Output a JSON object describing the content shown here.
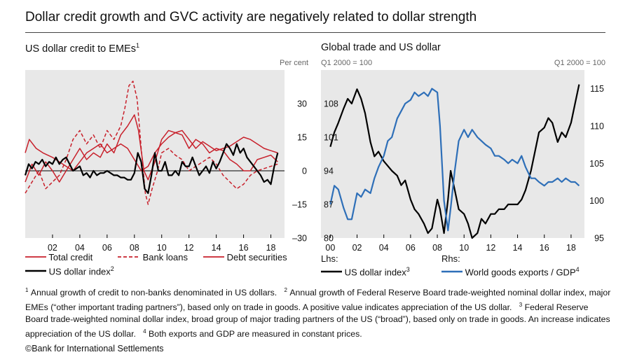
{
  "title": "Dollar credit growth and GVC activity are negatively related to dollar strength",
  "copyright": "©Bank for International Settlements",
  "footnotes": [
    {
      "mark": "1",
      "text": "Annual growth of credit to non-banks denominated in US dollars."
    },
    {
      "mark": "2",
      "text": "Annual growth of Federal Reserve Board trade-weighted nominal dollar index, major EMEs (“other important trading partners”), based only on trade in goods. A positive value indicates appreciation of the US dollar."
    },
    {
      "mark": "3",
      "text": "Federal Reserve Board trade-weighted nominal dollar index, broad group of major trading partners of the US (“broad”), based only on trade in goods. An increase indicates appreciation of the US dollar."
    },
    {
      "mark": "4",
      "text": "Both exports and GDP are measured in constant prices."
    }
  ],
  "chart_data": [
    {
      "type": "line",
      "title": "US dollar credit to EMEs",
      "title_note": "1",
      "unit_right": "Per cent",
      "x_ticks": [
        "02",
        "04",
        "06",
        "08",
        "10",
        "12",
        "14",
        "16",
        "18"
      ],
      "xlim": [
        2000,
        2019
      ],
      "ylim": [
        -30,
        45
      ],
      "y_ticks": [
        30,
        15,
        0,
        -15,
        -30
      ],
      "y_tick_labels": [
        "30",
        "15",
        "0",
        "–15",
        "–30"
      ],
      "grid": false,
      "zero_line": true,
      "background": "#e8e8e8",
      "legend_position": "bottom",
      "legend_layout": [
        [
          "Total credit",
          "Bank loans",
          "Debt securities"
        ],
        [
          "US dollar index"
        ]
      ],
      "series": [
        {
          "name": "Total credit",
          "color": "#c8202b",
          "style": "solid",
          "width": 1.5,
          "x": [
            2000,
            2000.5,
            2001,
            2001.5,
            2002,
            2002.5,
            2003,
            2003.5,
            2004,
            2004.5,
            2005,
            2005.5,
            2006,
            2006.5,
            2007,
            2007.5,
            2008,
            2008.3,
            2008.7,
            2009,
            2009.5,
            2010,
            2010.5,
            2011,
            2011.5,
            2012,
            2012.5,
            2013,
            2013.5,
            2014,
            2014.5,
            2015,
            2015.5,
            2016,
            2016.5,
            2017,
            2017.5,
            2018,
            2018.5
          ],
          "y": [
            -5,
            3,
            -2,
            4,
            0,
            -5,
            0,
            5,
            10,
            5,
            8,
            6,
            12,
            8,
            16,
            20,
            25,
            18,
            0,
            -4,
            4,
            14,
            18,
            17,
            16,
            10,
            14,
            12,
            8,
            10,
            9,
            5,
            3,
            0,
            0,
            5,
            6,
            7,
            4
          ]
        },
        {
          "name": "Bank loans",
          "color": "#c8202b",
          "style": "dashed",
          "width": 1.5,
          "x": [
            2000,
            2000.5,
            2001,
            2001.5,
            2002,
            2002.5,
            2003,
            2003.5,
            2004,
            2004.5,
            2005,
            2005.5,
            2006,
            2006.5,
            2007,
            2007.3,
            2007.6,
            2007.9,
            2008.2,
            2008.5,
            2008.8,
            2009,
            2009.3,
            2009.7,
            2010,
            2010.5,
            2011,
            2011.5,
            2012,
            2012.5,
            2013,
            2013.5,
            2014,
            2014.5,
            2015,
            2015.5,
            2016,
            2016.5,
            2017,
            2017.5,
            2018,
            2018.5
          ],
          "y": [
            -10,
            -5,
            0,
            -8,
            -5,
            -2,
            5,
            14,
            18,
            12,
            16,
            10,
            18,
            14,
            20,
            28,
            38,
            40,
            32,
            10,
            -10,
            -15,
            -8,
            0,
            8,
            10,
            7,
            5,
            0,
            2,
            4,
            6,
            3,
            -2,
            -5,
            -8,
            -6,
            -2,
            0,
            1,
            2,
            3
          ]
        },
        {
          "name": "Debt securities",
          "color": "#c8202b",
          "style": "solid",
          "width": 1.5,
          "x": [
            2000,
            2000.3,
            2000.8,
            2001.3,
            2002,
            2002.5,
            2003,
            2003.5,
            2004,
            2004.5,
            2005,
            2005.5,
            2006,
            2006.5,
            2007,
            2007.5,
            2008,
            2008.5,
            2009,
            2009.5,
            2010,
            2010.5,
            2011,
            2011.5,
            2012,
            2012.5,
            2013,
            2013.5,
            2014,
            2014.5,
            2015,
            2015.5,
            2016,
            2016.5,
            2017,
            2017.5,
            2018,
            2018.5
          ],
          "y": [
            8,
            14,
            10,
            8,
            6,
            4,
            2,
            0,
            4,
            8,
            10,
            12,
            8,
            10,
            12,
            10,
            5,
            0,
            2,
            8,
            12,
            15,
            17,
            18,
            14,
            10,
            13,
            11,
            9,
            10,
            11,
            13,
            15,
            14,
            12,
            10,
            9,
            8
          ]
        },
        {
          "name": "US dollar index",
          "note": "2",
          "color": "#000000",
          "style": "solid",
          "width": 2.2,
          "x": [
            2000,
            2000.25,
            2000.5,
            2000.75,
            2001,
            2001.25,
            2001.5,
            2001.75,
            2002,
            2002.25,
            2002.5,
            2002.75,
            2003,
            2003.25,
            2003.5,
            2003.75,
            2004,
            2004.25,
            2004.5,
            2004.75,
            2005,
            2005.25,
            2005.5,
            2005.75,
            2006,
            2006.25,
            2006.5,
            2006.75,
            2007,
            2007.25,
            2007.5,
            2007.75,
            2008,
            2008.25,
            2008.5,
            2008.75,
            2009,
            2009.25,
            2009.5,
            2009.75,
            2010,
            2010.25,
            2010.5,
            2010.75,
            2011,
            2011.25,
            2011.5,
            2011.75,
            2012,
            2012.25,
            2012.5,
            2012.75,
            2013,
            2013.25,
            2013.5,
            2013.75,
            2014,
            2014.25,
            2014.5,
            2014.75,
            2015,
            2015.25,
            2015.5,
            2015.75,
            2016,
            2016.25,
            2016.5,
            2016.75,
            2017,
            2017.25,
            2017.5,
            2017.75,
            2018,
            2018.25,
            2018.5
          ],
          "y": [
            -2,
            3,
            1,
            4,
            3,
            5,
            2,
            4,
            3,
            6,
            3,
            5,
            6,
            3,
            0,
            1,
            2,
            -2,
            -1,
            -3,
            0,
            -2,
            -1,
            -1,
            0,
            -1,
            -2,
            -2,
            -3,
            -3,
            -4,
            -4,
            -1,
            8,
            4,
            -8,
            -10,
            -2,
            8,
            0,
            0,
            4,
            -2,
            -2,
            0,
            -2,
            4,
            2,
            2,
            6,
            2,
            -2,
            0,
            2,
            -1,
            4,
            1,
            4,
            8,
            12,
            10,
            7,
            12,
            8,
            10,
            6,
            4,
            2,
            0,
            -2,
            -5,
            -4,
            -6,
            2,
            8
          ]
        }
      ]
    },
    {
      "type": "line",
      "title": "Global trade and US dollar",
      "unit_left": "Q1 2000 = 100",
      "unit_right": "Q1 2000 = 100",
      "x_ticks": [
        "00",
        "02",
        "04",
        "06",
        "08",
        "10",
        "12",
        "14",
        "16",
        "18"
      ],
      "xlim": [
        1999.3,
        2019
      ],
      "ylim_left": [
        80,
        115
      ],
      "y_ticks_left": [
        108,
        101,
        94,
        87,
        80
      ],
      "ylim_right": [
        95,
        117.5
      ],
      "y_ticks_right": [
        115,
        110,
        105,
        100,
        95
      ],
      "grid": false,
      "background": "#e8e8e8",
      "legend_position": "bottom",
      "legend_headers": [
        "Lhs:",
        "Rhs:"
      ],
      "series": [
        {
          "name": "US dollar index",
          "note": "3",
          "axis": "left",
          "color": "#000000",
          "width": 2.2,
          "x": [
            2000,
            2000.3,
            2000.6,
            2001,
            2001.3,
            2001.6,
            2002,
            2002.3,
            2002.6,
            2003,
            2003.3,
            2003.6,
            2004,
            2004.3,
            2004.6,
            2005,
            2005.3,
            2005.6,
            2006,
            2006.3,
            2006.6,
            2007,
            2007.3,
            2007.6,
            2008,
            2008.2,
            2008.5,
            2008.8,
            2009,
            2009.3,
            2009.6,
            2010,
            2010.3,
            2010.6,
            2011,
            2011.3,
            2011.6,
            2012,
            2012.3,
            2012.6,
            2013,
            2013.3,
            2013.6,
            2014,
            2014.3,
            2014.6,
            2015,
            2015.3,
            2015.6,
            2016,
            2016.3,
            2016.6,
            2017,
            2017.3,
            2017.6,
            2018,
            2018.3,
            2018.6
          ],
          "y": [
            99,
            102,
            104,
            107,
            109,
            108,
            111,
            109,
            106,
            100,
            97,
            98,
            96,
            95,
            94,
            93,
            91,
            92,
            88,
            86,
            85,
            83,
            81,
            82,
            88,
            86,
            81,
            88,
            94,
            90,
            86,
            85,
            83,
            80,
            81,
            84,
            83,
            85,
            85,
            86,
            86,
            87,
            87,
            87,
            88,
            90,
            94,
            98,
            102,
            103,
            105,
            104,
            100,
            102,
            101,
            104,
            108,
            112
          ]
        },
        {
          "name": "World goods exports / GDP",
          "note": "4",
          "axis": "right",
          "color": "#2e6fb8",
          "width": 2.2,
          "x": [
            2000,
            2000.3,
            2000.6,
            2001,
            2001.3,
            2001.6,
            2002,
            2002.3,
            2002.6,
            2003,
            2003.3,
            2003.6,
            2004,
            2004.3,
            2004.6,
            2005,
            2005.3,
            2005.6,
            2006,
            2006.3,
            2006.6,
            2007,
            2007.3,
            2007.6,
            2008,
            2008.2,
            2008.5,
            2008.8,
            2009,
            2009.3,
            2009.6,
            2010,
            2010.3,
            2010.6,
            2011,
            2011.3,
            2011.6,
            2012,
            2012.3,
            2012.6,
            2013,
            2013.3,
            2013.6,
            2014,
            2014.3,
            2014.6,
            2015,
            2015.3,
            2015.6,
            2016,
            2016.3,
            2016.6,
            2017,
            2017.3,
            2017.6,
            2018,
            2018.3,
            2018.6
          ],
          "y": [
            99.5,
            102,
            101.5,
            99,
            97.5,
            97.5,
            101,
            100.5,
            101.5,
            101,
            103,
            104.5,
            106,
            108,
            108.5,
            111,
            112,
            113,
            113.5,
            114.5,
            114,
            114.5,
            114,
            115,
            114.5,
            110,
            100,
            96,
            99,
            104,
            108,
            109.5,
            108.5,
            109.5,
            108.5,
            108,
            107.5,
            107,
            106,
            106,
            105.5,
            105,
            105.5,
            105,
            106,
            104.5,
            103,
            103,
            102.5,
            102,
            102.5,
            102.5,
            103,
            102.5,
            103,
            102.5,
            102.5,
            102
          ]
        }
      ]
    }
  ]
}
